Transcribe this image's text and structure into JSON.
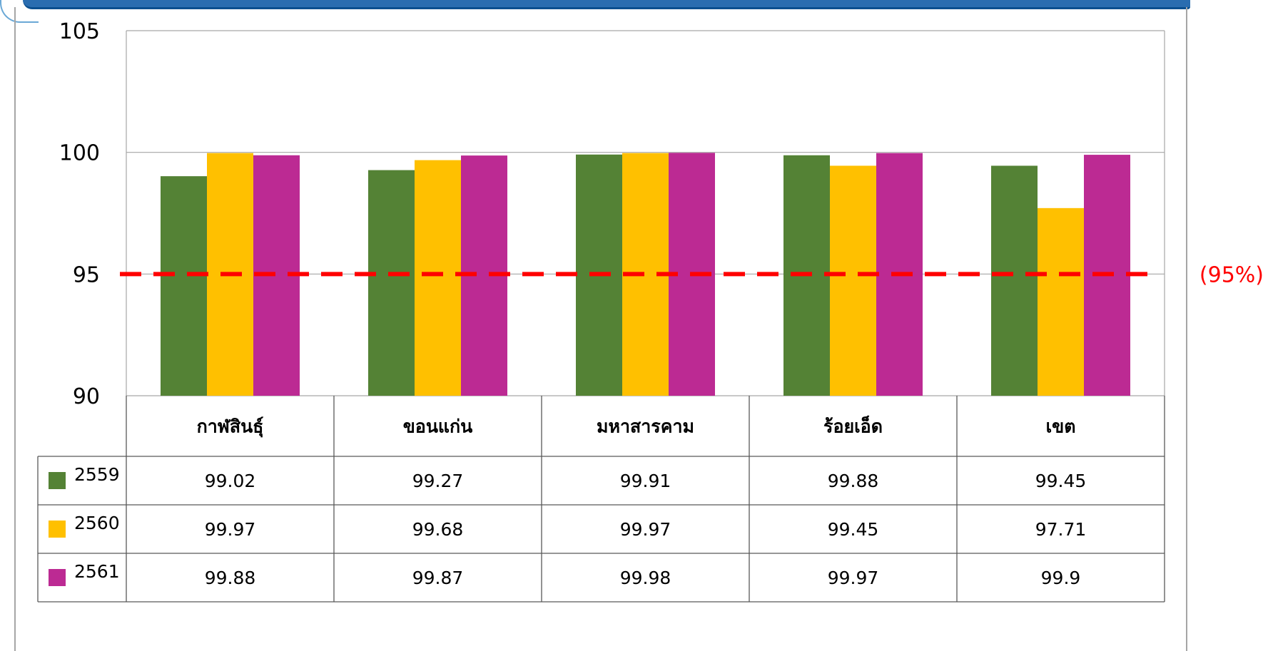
{
  "chart_data": {
    "type": "bar",
    "title": "",
    "xlabel": "",
    "ylabel": "",
    "ylim": [
      90,
      105
    ],
    "yticks": [
      90,
      95,
      100,
      105
    ],
    "grid": true,
    "legend": "data-table-left",
    "categories": [
      "กาฬสินธุ์",
      "ขอนแก่น",
      "มหาสารคาม",
      "ร้อยเอ็ด",
      "เขต"
    ],
    "series": [
      {
        "name": "2559",
        "color": "#548235",
        "values": [
          99.02,
          99.27,
          99.91,
          99.88,
          99.45
        ]
      },
      {
        "name": "2560",
        "color": "#ffc000",
        "values": [
          99.97,
          99.68,
          99.97,
          99.45,
          97.71
        ]
      },
      {
        "name": "2561",
        "color": "#bc2a93",
        "values": [
          99.88,
          99.87,
          99.98,
          99.97,
          99.9
        ]
      }
    ],
    "target_line": {
      "value": 95,
      "label": "(95%)",
      "color": "#ff0000"
    }
  },
  "colors": {
    "header_bar": "#2a6db0",
    "grid": "#a6a6a6",
    "table_border": "#595959"
  }
}
